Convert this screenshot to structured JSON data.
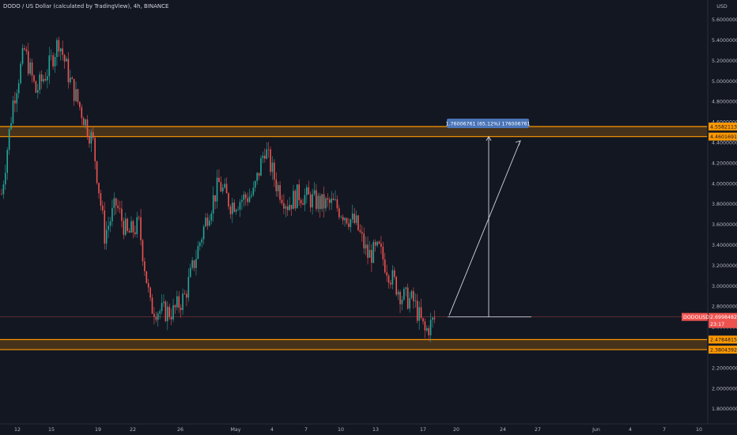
{
  "header": {
    "title": "DODO / US Dollar (calculated by TradingView), 4h, BINANCE"
  },
  "axis": {
    "currency": "USD",
    "y_ticks": [
      "5.60000000",
      "5.40000000",
      "5.20000000",
      "5.00000000",
      "4.80000000",
      "4.60000000",
      "4.40000000",
      "4.20000000",
      "4.00000000",
      "3.80000000",
      "3.60000000",
      "3.40000000",
      "3.20000000",
      "3.00000000",
      "2.80000000",
      "2.60000000",
      "2.40000000",
      "2.20000000",
      "2.00000000",
      "1.80000000"
    ],
    "x_ticks": [
      "12",
      "15",
      "19",
      "22",
      "26",
      "May",
      "4",
      "7",
      "10",
      "13",
      "17",
      "20",
      "24",
      "27",
      "Jun",
      "4",
      "7",
      "10"
    ]
  },
  "price_tags": {
    "zone_top_upper": "4.55821137",
    "zone_top_lower": "4.46016911",
    "current_symbol": "DODOUSD",
    "current_price": "2.69984820",
    "countdown": "23:17",
    "zone_bottom_upper": "2.47848159",
    "zone_bottom_lower": "2.38043924"
  },
  "measure": {
    "label": "1.76006761 (65.12%) 176006761"
  },
  "colors": {
    "background": "#131722",
    "zone": "#ff9800",
    "up": "#26a69a",
    "down": "#ef5350",
    "measure_tag": "#4a75b8"
  },
  "chart_data": {
    "type": "candlestick",
    "title": "DODO / US Dollar (calculated by TradingView), 4h, BINANCE",
    "xlabel": "",
    "ylabel": "USD",
    "ylim": [
      1.74,
      5.67
    ],
    "grid": false,
    "resistance_zone": [
      4.46016911,
      4.55821137
    ],
    "support_zone": [
      2.38043924,
      2.47848159
    ],
    "current_price": 2.6998482,
    "projected_move": {
      "from": 2.6998482,
      "to": 4.46,
      "change": 1.76006761,
      "percent": 65.12
    },
    "approx_closes": [
      {
        "date": "Apr 10",
        "close": 3.9
      },
      {
        "date": "Apr 11",
        "close": 4.8
      },
      {
        "date": "Apr 12",
        "close": 5.3
      },
      {
        "date": "Apr 13",
        "close": 4.9
      },
      {
        "date": "Apr 14",
        "close": 5.1
      },
      {
        "date": "Apr 15",
        "close": 5.4
      },
      {
        "date": "Apr 16",
        "close": 5.0
      },
      {
        "date": "Apr 17",
        "close": 4.7
      },
      {
        "date": "Apr 18",
        "close": 4.4
      },
      {
        "date": "Apr 19",
        "close": 3.5
      },
      {
        "date": "Apr 20",
        "close": 3.8
      },
      {
        "date": "Apr 21",
        "close": 3.5
      },
      {
        "date": "Apr 22",
        "close": 3.6
      },
      {
        "date": "Apr 23",
        "close": 2.8
      },
      {
        "date": "Apr 24",
        "close": 2.75
      },
      {
        "date": "Apr 25",
        "close": 2.75
      },
      {
        "date": "Apr 26",
        "close": 2.9
      },
      {
        "date": "Apr 27",
        "close": 3.3
      },
      {
        "date": "Apr 28",
        "close": 3.7
      },
      {
        "date": "Apr 29",
        "close": 4.0
      },
      {
        "date": "Apr 30",
        "close": 3.8
      },
      {
        "date": "May 1",
        "close": 3.85
      },
      {
        "date": "May 2",
        "close": 3.9
      },
      {
        "date": "May 3",
        "close": 4.35
      },
      {
        "date": "May 4",
        "close": 4.0
      },
      {
        "date": "May 5",
        "close": 3.8
      },
      {
        "date": "May 6",
        "close": 3.9
      },
      {
        "date": "May 7",
        "close": 3.85
      },
      {
        "date": "May 8",
        "close": 3.8
      },
      {
        "date": "May 9",
        "close": 3.8
      },
      {
        "date": "May 10",
        "close": 3.7
      },
      {
        "date": "May 11",
        "close": 3.6
      },
      {
        "date": "May 12",
        "close": 3.3
      },
      {
        "date": "May 13",
        "close": 3.35
      },
      {
        "date": "May 14",
        "close": 3.1
      },
      {
        "date": "May 15",
        "close": 2.9
      },
      {
        "date": "May 16",
        "close": 2.85
      },
      {
        "date": "May 17",
        "close": 2.55
      },
      {
        "date": "May 18",
        "close": 2.7
      }
    ]
  }
}
